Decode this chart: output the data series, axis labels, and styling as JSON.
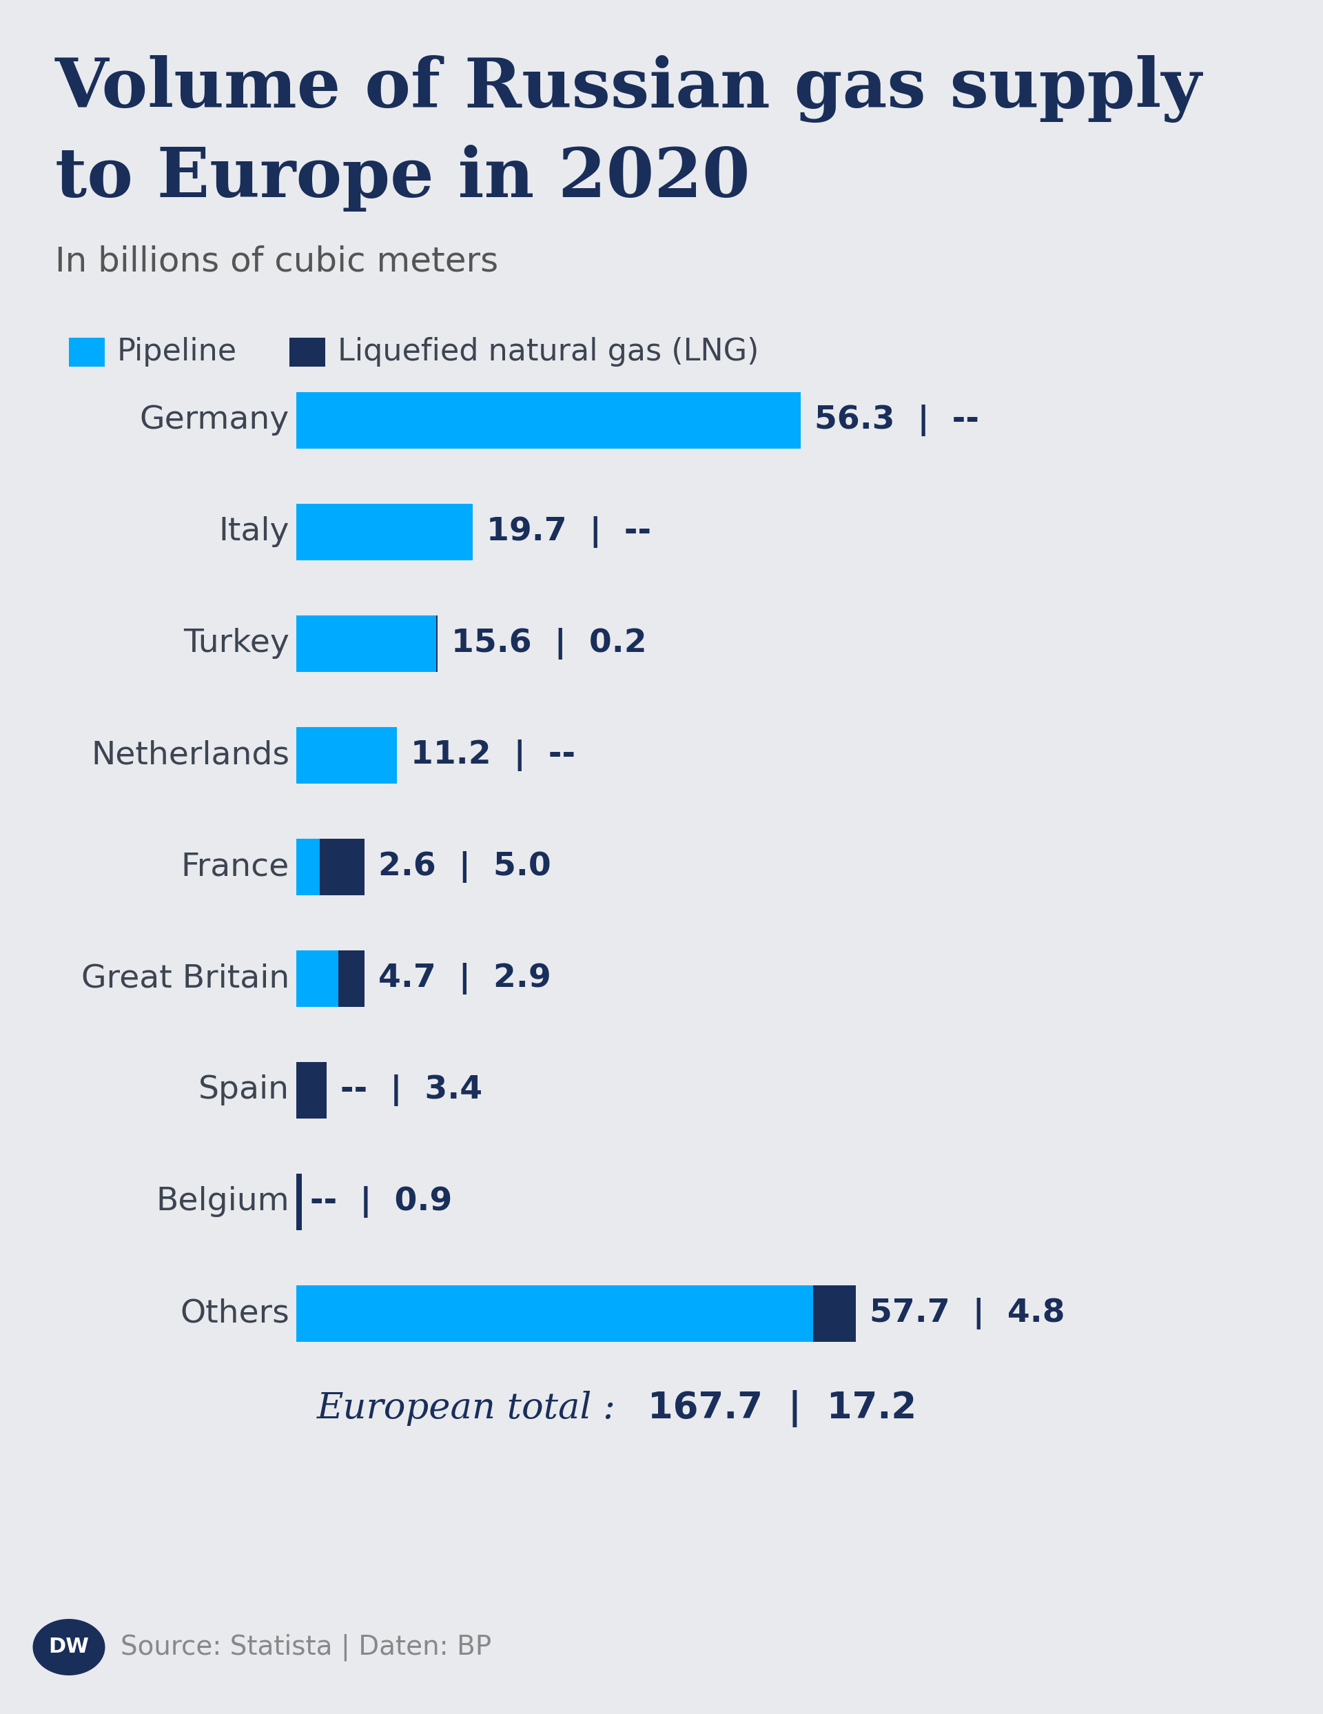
{
  "title_line1": "Volume of Russian gas supply",
  "title_line2": "to Europe in 2020",
  "subtitle": "In billions of cubic meters",
  "background_color": "#e8eaed",
  "title_color": "#1a2e5a",
  "subtitle_color": "#555555",
  "label_color": "#3d4452",
  "pipeline_color": "#00aaff",
  "lng_color": "#1a2e5a",
  "value_color": "#1a2e5a",
  "categories": [
    "Germany",
    "Italy",
    "Turkey",
    "Netherlands",
    "France",
    "Great Britain",
    "Spain",
    "Belgium",
    "Others"
  ],
  "pipeline_values": [
    56.3,
    19.7,
    15.6,
    11.2,
    2.6,
    4.7,
    0.0,
    0.0,
    57.7
  ],
  "lng_values": [
    0.0,
    0.0,
    0.2,
    0.0,
    5.0,
    2.9,
    3.4,
    0.9,
    4.8
  ],
  "pipeline_labels": [
    "56.3",
    "19.7",
    "15.6",
    "11.2",
    "2.6",
    "4.7",
    "--",
    "--",
    "57.7"
  ],
  "lng_labels": [
    "--",
    "--",
    "0.2",
    "--",
    "5.0",
    "2.9",
    "3.4",
    "0.9",
    "4.8"
  ],
  "legend_pipeline": "Pipeline",
  "legend_lng": "Liquefied natural gas (LNG)",
  "footer_text": "Source: Statista | Daten: BP",
  "european_total_pipeline": "167.7",
  "european_total_lng": "17.2",
  "european_total_label": "European total :"
}
